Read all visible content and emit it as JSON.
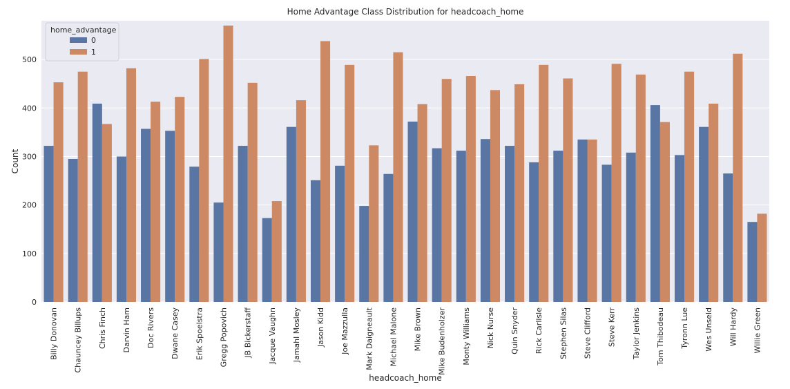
{
  "chart_data": {
    "type": "bar",
    "title": "Home Advantage Class Distribution for headcoach_home",
    "xlabel": "headcoach_home",
    "ylabel": "Count",
    "ylim": [
      0,
      580
    ],
    "yticks": [
      0,
      100,
      200,
      300,
      400,
      500
    ],
    "grid": true,
    "legend": {
      "title": "home_advantage",
      "placement": "top-left"
    },
    "categories": [
      "Billy Donovan",
      "Chauncey Billups",
      "Chris Finch",
      "Darvin Ham",
      "Doc Rivers",
      "Dwane Casey",
      "Erik Spoelstra",
      "Gregg Popovich",
      "JB Bickerstaff",
      "Jacque Vaughn",
      "Jamahl Mosley",
      "Jason Kidd",
      "Joe Mazzulla",
      "Mark Daigneault",
      "Michael Malone",
      "Mike Brown",
      "Mike Budenholzer",
      "Monty Williams",
      "Nick Nurse",
      "Quin Snyder",
      "Rick Carlisle",
      "Stephen Silas",
      "Steve Clifford",
      "Steve Kerr",
      "Taylor Jenkins",
      "Tom Thibodeau",
      "Tyronn Lue",
      "Wes Unseld",
      "Will Hardy",
      "Willie Green"
    ],
    "series": [
      {
        "name": "0",
        "color": "#5875a4",
        "values": [
          322,
          295,
          409,
          300,
          357,
          353,
          279,
          205,
          322,
          173,
          361,
          251,
          281,
          198,
          264,
          372,
          317,
          312,
          336,
          322,
          288,
          312,
          335,
          283,
          308,
          406,
          303,
          361,
          265,
          165
        ]
      },
      {
        "name": "1",
        "color": "#cc8963",
        "values": [
          453,
          475,
          367,
          482,
          413,
          423,
          501,
          570,
          452,
          208,
          416,
          538,
          489,
          323,
          515,
          408,
          460,
          466,
          437,
          449,
          489,
          461,
          335,
          491,
          469,
          371,
          475,
          409,
          512,
          182
        ]
      }
    ]
  }
}
